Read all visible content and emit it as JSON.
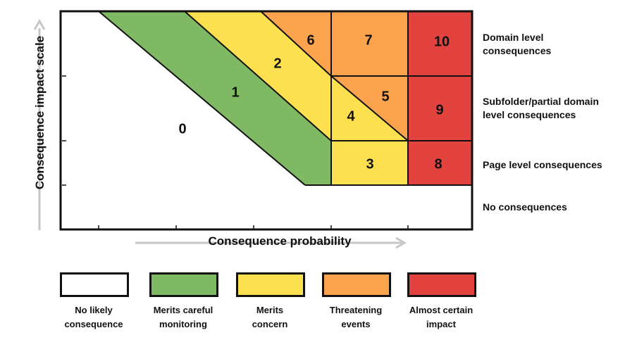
{
  "colors": {
    "none": "#ffffff",
    "green": "#80b963",
    "yellow": "#fde04f",
    "orange": "#fba34d",
    "red": "#e2433f",
    "grid": "#111111",
    "arrow": "#c6c6c6"
  },
  "zones": [
    {
      "id": "zone-0",
      "label": "0",
      "level": "none"
    },
    {
      "id": "zone-1",
      "label": "1",
      "level": "green"
    },
    {
      "id": "zone-2",
      "label": "2",
      "level": "yellow"
    },
    {
      "id": "zone-3",
      "label": "3",
      "level": "yellow"
    },
    {
      "id": "zone-4",
      "label": "4",
      "level": "yellow"
    },
    {
      "id": "zone-5",
      "label": "5",
      "level": "orange"
    },
    {
      "id": "zone-6",
      "label": "6",
      "level": "orange"
    },
    {
      "id": "zone-7",
      "label": "7",
      "level": "orange"
    },
    {
      "id": "zone-8",
      "label": "8",
      "level": "red"
    },
    {
      "id": "zone-9",
      "label": "9",
      "level": "red"
    },
    {
      "id": "zone-10",
      "label": "10",
      "level": "red"
    }
  ],
  "row_labels": [
    {
      "line1": "Domain level",
      "line2": "consequences"
    },
    {
      "line1": "Subfolder/partial domain",
      "line2": "level consequences"
    },
    {
      "line1": "Page level consequences",
      "line2": ""
    },
    {
      "line1": "No consequences",
      "line2": ""
    }
  ],
  "axes": {
    "y_title": "Consequence impact scale",
    "x_title": "Consequence probability"
  },
  "legend": [
    {
      "line1": "No likely",
      "line2": "consequence",
      "level": "none"
    },
    {
      "line1": "Merits careful",
      "line2": "monitoring",
      "level": "green"
    },
    {
      "line1": "Merits",
      "line2": "concern",
      "level": "yellow"
    },
    {
      "line1": "Threatening",
      "line2": "events",
      "level": "orange"
    },
    {
      "line1": "Almost certain",
      "line2": "impact",
      "level": "red"
    }
  ]
}
